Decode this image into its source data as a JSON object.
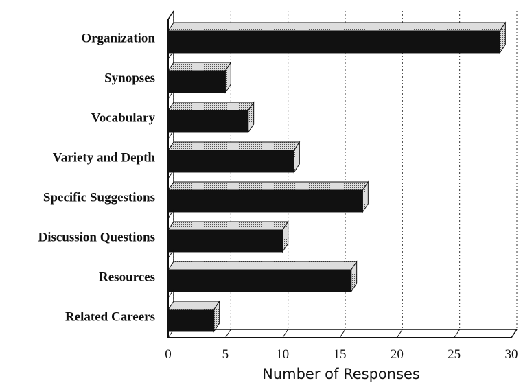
{
  "chart_data": {
    "type": "bar",
    "orientation": "horizontal",
    "x_axis_label": "Number of Responses",
    "categories": [
      "Organization",
      "Synopses",
      "Vocabulary",
      "Variety and Depth",
      "Specific Suggestions",
      "Discussion Questions",
      "Resources",
      "Related Careers"
    ],
    "values": [
      29,
      5,
      7,
      11,
      17,
      10,
      16,
      4
    ],
    "color": "#111111",
    "xlim": [
      0,
      30
    ],
    "xticks": [
      0,
      5,
      10,
      15,
      20,
      25,
      30
    ],
    "grid": true
  }
}
